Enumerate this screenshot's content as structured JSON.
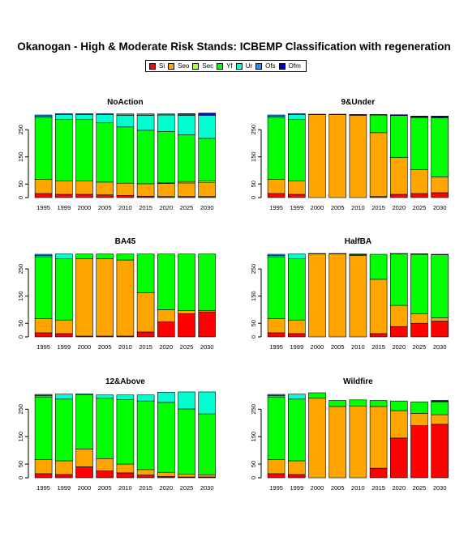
{
  "title": "Okanogan  - High & Moderate Risk Stands: ICBEMP Classification with regeneration",
  "legend": [
    {
      "name": "Si",
      "color": "#ff0000"
    },
    {
      "name": "Seo",
      "color": "#ffa500"
    },
    {
      "name": "Sec",
      "color": "#adff2f"
    },
    {
      "name": "Yf",
      "color": "#00ff00"
    },
    {
      "name": "Ur",
      "color": "#00ffd0"
    },
    {
      "name": "Ofs",
      "color": "#1e90ff"
    },
    {
      "name": "Ofm",
      "color": "#0000cd"
    }
  ],
  "chart_data": [
    {
      "type": "bar",
      "stacked": true,
      "title": "NoAction",
      "categories": [
        "1995",
        "1999",
        "2000",
        "2005",
        "2010",
        "2015",
        "2020",
        "2025",
        "2030"
      ],
      "ylim": [
        0,
        310
      ],
      "yticks": [
        0,
        50,
        150,
        250
      ],
      "series": [
        {
          "name": "Si",
          "values": [
            15,
            12,
            12,
            10,
            8,
            5,
            4,
            4,
            4
          ]
        },
        {
          "name": "Seo",
          "values": [
            52,
            50,
            50,
            47,
            45,
            46,
            48,
            50,
            52
          ]
        },
        {
          "name": "Sec",
          "values": [
            0,
            0,
            0,
            0,
            0,
            0,
            2,
            5,
            5
          ]
        },
        {
          "name": "Yf",
          "values": [
            228,
            225,
            225,
            218,
            207,
            197,
            189,
            172,
            157
          ]
        },
        {
          "name": "Ur",
          "values": [
            5,
            18,
            18,
            30,
            43,
            55,
            61,
            72,
            84
          ]
        },
        {
          "name": "Ofs",
          "values": [
            4,
            4,
            4,
            4,
            5,
            5,
            4,
            4,
            4
          ]
        },
        {
          "name": "Ofm",
          "values": [
            0,
            0,
            0,
            0,
            0,
            0,
            0,
            2,
            5
          ]
        }
      ]
    },
    {
      "type": "bar",
      "stacked": true,
      "title": "9&Under",
      "categories": [
        "1995",
        "1999",
        "2000",
        "2005",
        "2010",
        "2015",
        "2020",
        "2025",
        "2030"
      ],
      "ylim": [
        0,
        310
      ],
      "yticks": [
        0,
        50,
        150,
        250
      ],
      "series": [
        {
          "name": "Si",
          "values": [
            15,
            12,
            0,
            0,
            0,
            4,
            12,
            15,
            18
          ]
        },
        {
          "name": "Seo",
          "values": [
            52,
            50,
            305,
            305,
            303,
            235,
            135,
            88,
            58
          ]
        },
        {
          "name": "Sec",
          "values": [
            0,
            0,
            0,
            0,
            0,
            0,
            0,
            0,
            0
          ]
        },
        {
          "name": "Yf",
          "values": [
            228,
            225,
            0,
            0,
            0,
            65,
            155,
            192,
            218
          ]
        },
        {
          "name": "Ur",
          "values": [
            5,
            18,
            0,
            0,
            0,
            0,
            0,
            2,
            2
          ]
        },
        {
          "name": "Ofs",
          "values": [
            4,
            4,
            0,
            0,
            0,
            0,
            0,
            0,
            0
          ]
        },
        {
          "name": "Ofm",
          "values": [
            0,
            0,
            2,
            2,
            3,
            2,
            3,
            3,
            4
          ]
        }
      ]
    },
    {
      "type": "bar",
      "stacked": true,
      "title": "BA45",
      "categories": [
        "1995",
        "1999",
        "2000",
        "2005",
        "2010",
        "2015",
        "2020",
        "2025",
        "2030"
      ],
      "ylim": [
        0,
        310
      ],
      "yticks": [
        0,
        50,
        150,
        250
      ],
      "series": [
        {
          "name": "Si",
          "values": [
            15,
            12,
            3,
            3,
            3,
            18,
            55,
            85,
            92
          ]
        },
        {
          "name": "Seo",
          "values": [
            52,
            50,
            285,
            285,
            280,
            145,
            45,
            12,
            5
          ]
        },
        {
          "name": "Sec",
          "values": [
            0,
            0,
            0,
            0,
            0,
            0,
            0,
            0,
            0
          ]
        },
        {
          "name": "Yf",
          "values": [
            228,
            225,
            17,
            17,
            22,
            142,
            205,
            208,
            208
          ]
        },
        {
          "name": "Ur",
          "values": [
            5,
            18,
            0,
            0,
            0,
            0,
            0,
            0,
            0
          ]
        },
        {
          "name": "Ofs",
          "values": [
            4,
            0,
            0,
            0,
            0,
            0,
            0,
            0,
            0
          ]
        },
        {
          "name": "Ofm",
          "values": [
            0,
            0,
            0,
            0,
            0,
            0,
            0,
            0,
            0
          ]
        }
      ]
    },
    {
      "type": "bar",
      "stacked": true,
      "title": "HalfBA",
      "categories": [
        "1995",
        "1999",
        "2000",
        "2005",
        "2010",
        "2015",
        "2020",
        "2025",
        "2030"
      ],
      "ylim": [
        0,
        310
      ],
      "yticks": [
        0,
        50,
        150,
        250
      ],
      "series": [
        {
          "name": "Si",
          "values": [
            15,
            12,
            0,
            0,
            0,
            12,
            38,
            50,
            58
          ]
        },
        {
          "name": "Seo",
          "values": [
            52,
            50,
            305,
            305,
            300,
            200,
            78,
            35,
            12
          ]
        },
        {
          "name": "Sec",
          "values": [
            0,
            0,
            0,
            0,
            0,
            0,
            0,
            0,
            0
          ]
        },
        {
          "name": "Yf",
          "values": [
            228,
            225,
            0,
            0,
            3,
            92,
            189,
            219,
            232
          ]
        },
        {
          "name": "Ur",
          "values": [
            5,
            18,
            0,
            0,
            0,
            0,
            0,
            0,
            0
          ]
        },
        {
          "name": "Ofs",
          "values": [
            4,
            0,
            0,
            0,
            0,
            0,
            0,
            0,
            0
          ]
        },
        {
          "name": "Ofm",
          "values": [
            0,
            0,
            2,
            2,
            2,
            0,
            2,
            2,
            2
          ]
        }
      ]
    },
    {
      "type": "bar",
      "stacked": true,
      "title": "12&Above",
      "categories": [
        "1995",
        "1999",
        "2000",
        "2005",
        "2010",
        "2015",
        "2020",
        "2025",
        "2030"
      ],
      "ylim": [
        0,
        310
      ],
      "yticks": [
        0,
        50,
        150,
        250
      ],
      "series": [
        {
          "name": "Si",
          "values": [
            15,
            12,
            40,
            25,
            18,
            10,
            5,
            3,
            3
          ]
        },
        {
          "name": "Seo",
          "values": [
            52,
            50,
            65,
            45,
            32,
            20,
            15,
            10,
            8
          ]
        },
        {
          "name": "Sec",
          "values": [
            0,
            0,
            0,
            0,
            0,
            0,
            0,
            0,
            0
          ]
        },
        {
          "name": "Yf",
          "values": [
            228,
            225,
            197,
            220,
            235,
            250,
            255,
            238,
            222
          ]
        },
        {
          "name": "Ur",
          "values": [
            5,
            18,
            4,
            12,
            17,
            22,
            37,
            62,
            80
          ]
        },
        {
          "name": "Ofs",
          "values": [
            4,
            0,
            0,
            0,
            0,
            0,
            0,
            0,
            0
          ]
        },
        {
          "name": "Ofm",
          "values": [
            0,
            0,
            0,
            0,
            0,
            0,
            0,
            0,
            0
          ]
        }
      ]
    },
    {
      "type": "bar",
      "stacked": true,
      "title": "Wildfire",
      "categories": [
        "1995",
        "1999",
        "2000",
        "2005",
        "2010",
        "2015",
        "2020",
        "2025",
        "2030"
      ],
      "ylim": [
        0,
        310
      ],
      "yticks": [
        0,
        50,
        150,
        250
      ],
      "series": [
        {
          "name": "Si",
          "values": [
            15,
            12,
            0,
            0,
            0,
            35,
            145,
            190,
            195
          ]
        },
        {
          "name": "Seo",
          "values": [
            52,
            50,
            290,
            260,
            262,
            225,
            100,
            45,
            35
          ]
        },
        {
          "name": "Sec",
          "values": [
            0,
            0,
            0,
            0,
            0,
            0,
            0,
            0,
            0
          ]
        },
        {
          "name": "Yf",
          "values": [
            228,
            225,
            20,
            22,
            22,
            22,
            35,
            42,
            47
          ]
        },
        {
          "name": "Ur",
          "values": [
            5,
            18,
            0,
            0,
            0,
            0,
            0,
            0,
            0
          ]
        },
        {
          "name": "Ofs",
          "values": [
            4,
            0,
            0,
            0,
            0,
            0,
            0,
            0,
            0
          ]
        },
        {
          "name": "Ofm",
          "values": [
            0,
            0,
            0,
            0,
            0,
            0,
            0,
            0,
            5
          ]
        }
      ]
    }
  ]
}
